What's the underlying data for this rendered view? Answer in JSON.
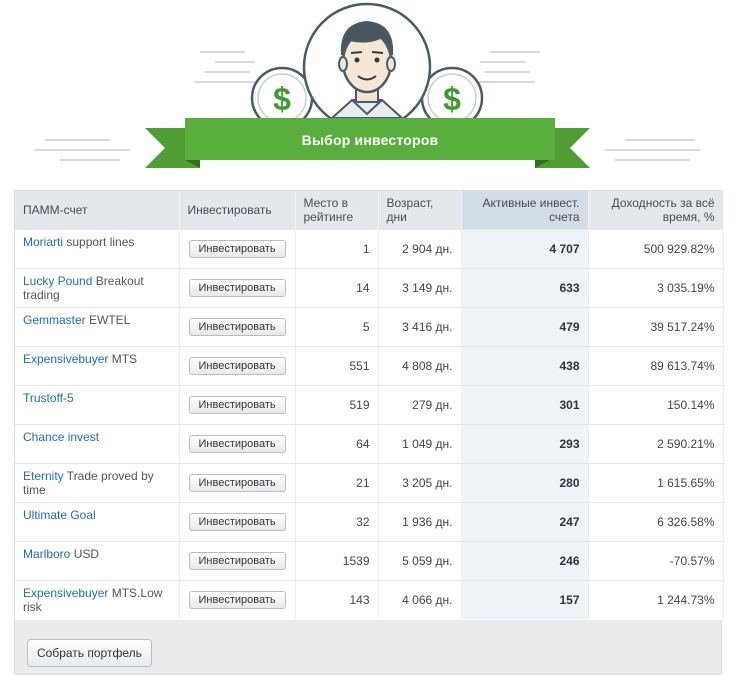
{
  "banner": {
    "title": "Выбор инвесторов"
  },
  "icons": {
    "coin_left": "dollar-coin-icon",
    "coin_right": "dollar-coin-icon",
    "avatar": "investor-avatar-icon"
  },
  "colors": {
    "banner_green": "#5aae3d",
    "link_blue": "#1f6fb5",
    "header_bg": "#e4e8ec",
    "active_col_bg": "#eff3f7"
  },
  "table": {
    "headers": {
      "account": "ПАММ-счет",
      "invest": "Инвестировать",
      "rank": "Место в рейтинге",
      "age": "Возраст, дни",
      "active": "Активные инвест. счета",
      "yield": "Доходность за всё время, %"
    },
    "rows": [
      {
        "name": "Moriarti",
        "rest": " support lines",
        "button": "Инвестировать",
        "rank": "1",
        "age": "2 904 дн.",
        "active": "4 707",
        "yield": "500 929.82%"
      },
      {
        "name": "Lucky Pound",
        "rest": " Breakout trading",
        "button": "Инвестировать",
        "rank": "14",
        "age": "3 149 дн.",
        "active": "633",
        "yield": "3 035.19%"
      },
      {
        "name": "Gemmaster",
        "rest": " EWTEL",
        "button": "Инвестировать",
        "rank": "5",
        "age": "3 416 дн.",
        "active": "479",
        "yield": "39 517.24%"
      },
      {
        "name": "Expensivebuyer",
        "rest": " MTS",
        "button": "Инвестировать",
        "rank": "551",
        "age": "4 808 дн.",
        "active": "438",
        "yield": "89 613.74%"
      },
      {
        "name": "Trustoff-5",
        "rest": "",
        "button": "Инвестировать",
        "rank": "519",
        "age": "279 дн.",
        "active": "301",
        "yield": "150.14%"
      },
      {
        "name": "Chance invest",
        "rest": "",
        "button": "Инвестировать",
        "rank": "64",
        "age": "1 049 дн.",
        "active": "293",
        "yield": "2 590.21%"
      },
      {
        "name": "Eternity",
        "rest": " Trade proved by time",
        "button": "Инвестировать",
        "rank": "21",
        "age": "3 205 дн.",
        "active": "280",
        "yield": "1 615.65%"
      },
      {
        "name": "Ultimate Goal",
        "rest": "",
        "button": "Инвестировать",
        "rank": "32",
        "age": "1 936 дн.",
        "active": "247",
        "yield": "6 326.58%"
      },
      {
        "name": "Marlboro",
        "rest": " USD",
        "button": "Инвестировать",
        "rank": "1539",
        "age": "5 059 дн.",
        "active": "246",
        "yield": "-70.57%"
      },
      {
        "name": "Expensivebuyer",
        "rest": " MTS.Low risk",
        "button": "Инвестировать",
        "rank": "143",
        "age": "4 066 дн.",
        "active": "157",
        "yield": "1 244.73%"
      }
    ]
  },
  "footer": {
    "portfolio_button": "Собрать портфель"
  }
}
